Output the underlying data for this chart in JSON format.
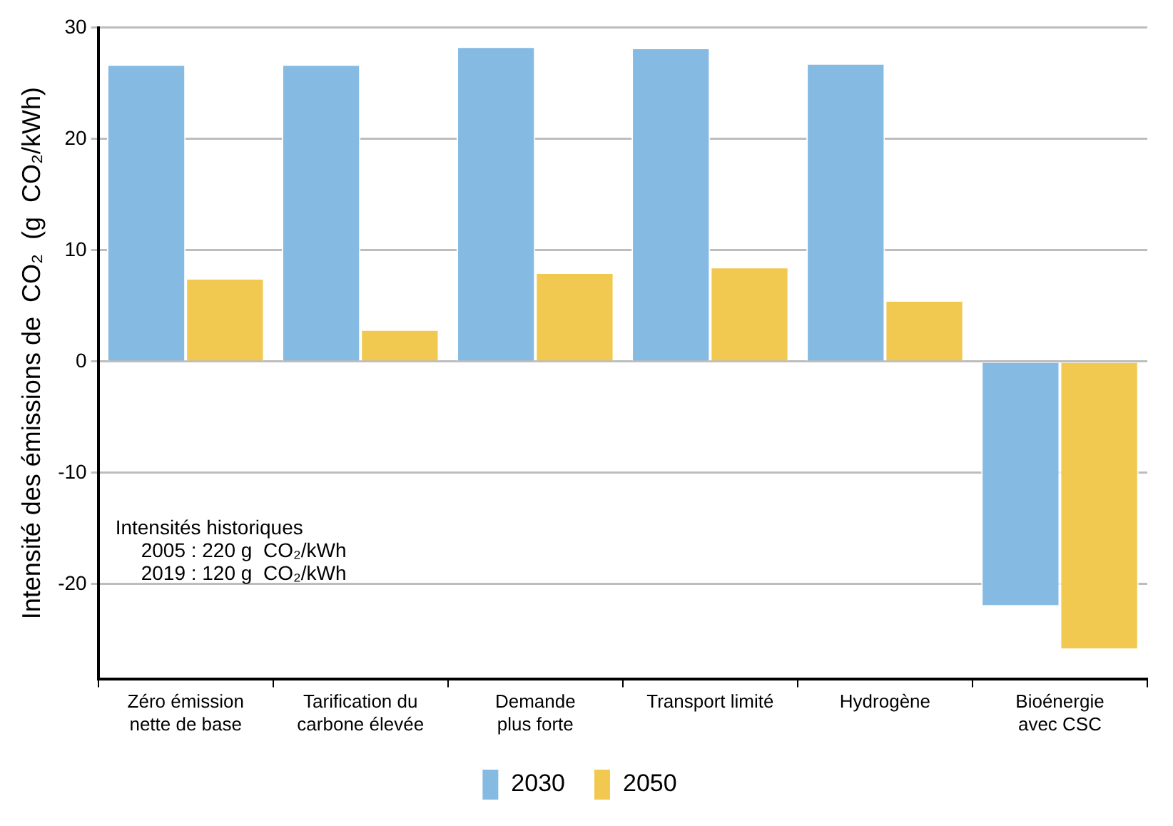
{
  "chart_data": {
    "type": "bar",
    "ylabel": "Intensité des émissions de  CO₂  (g  CO₂/kWh)",
    "categories": [
      "Zéro émission nette de base",
      "Tarification du carbone élevée",
      "Demande plus forte",
      "Transport limité",
      "Hydrogène",
      "Bioénergie avec CSC"
    ],
    "series": [
      {
        "name": "2030",
        "color": "#85bae3",
        "values": [
          26.7,
          26.7,
          28.3,
          28.2,
          26.8,
          -22.0
        ]
      },
      {
        "name": "2050",
        "color": "#f1c951",
        "values": [
          7.5,
          2.9,
          8.0,
          8.5,
          5.5,
          -25.9
        ]
      }
    ],
    "ylim": [
      -28.5,
      30
    ],
    "yticks": [
      -20,
      -10,
      0,
      10,
      20,
      30
    ],
    "grid": "y",
    "legend": "bottom",
    "annotations": [
      "Intensités historiques",
      "2005 : 220 g  CO₂/kWh",
      "2019 : 120 g  CO₂/kWh"
    ]
  }
}
